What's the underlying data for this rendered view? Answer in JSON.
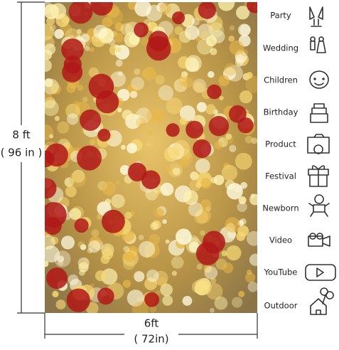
{
  "dimensions": {
    "height": {
      "feet": "8 ft",
      "inches": "( 96 in )"
    },
    "width": {
      "feet": "6ft",
      "inches": "( 72in)"
    }
  },
  "uses": [
    "Party",
    "Wedding",
    "Children",
    "Birthday",
    "Product",
    "Festival",
    "Newborn",
    "Video",
    "YouTube",
    "Outdoor"
  ]
}
